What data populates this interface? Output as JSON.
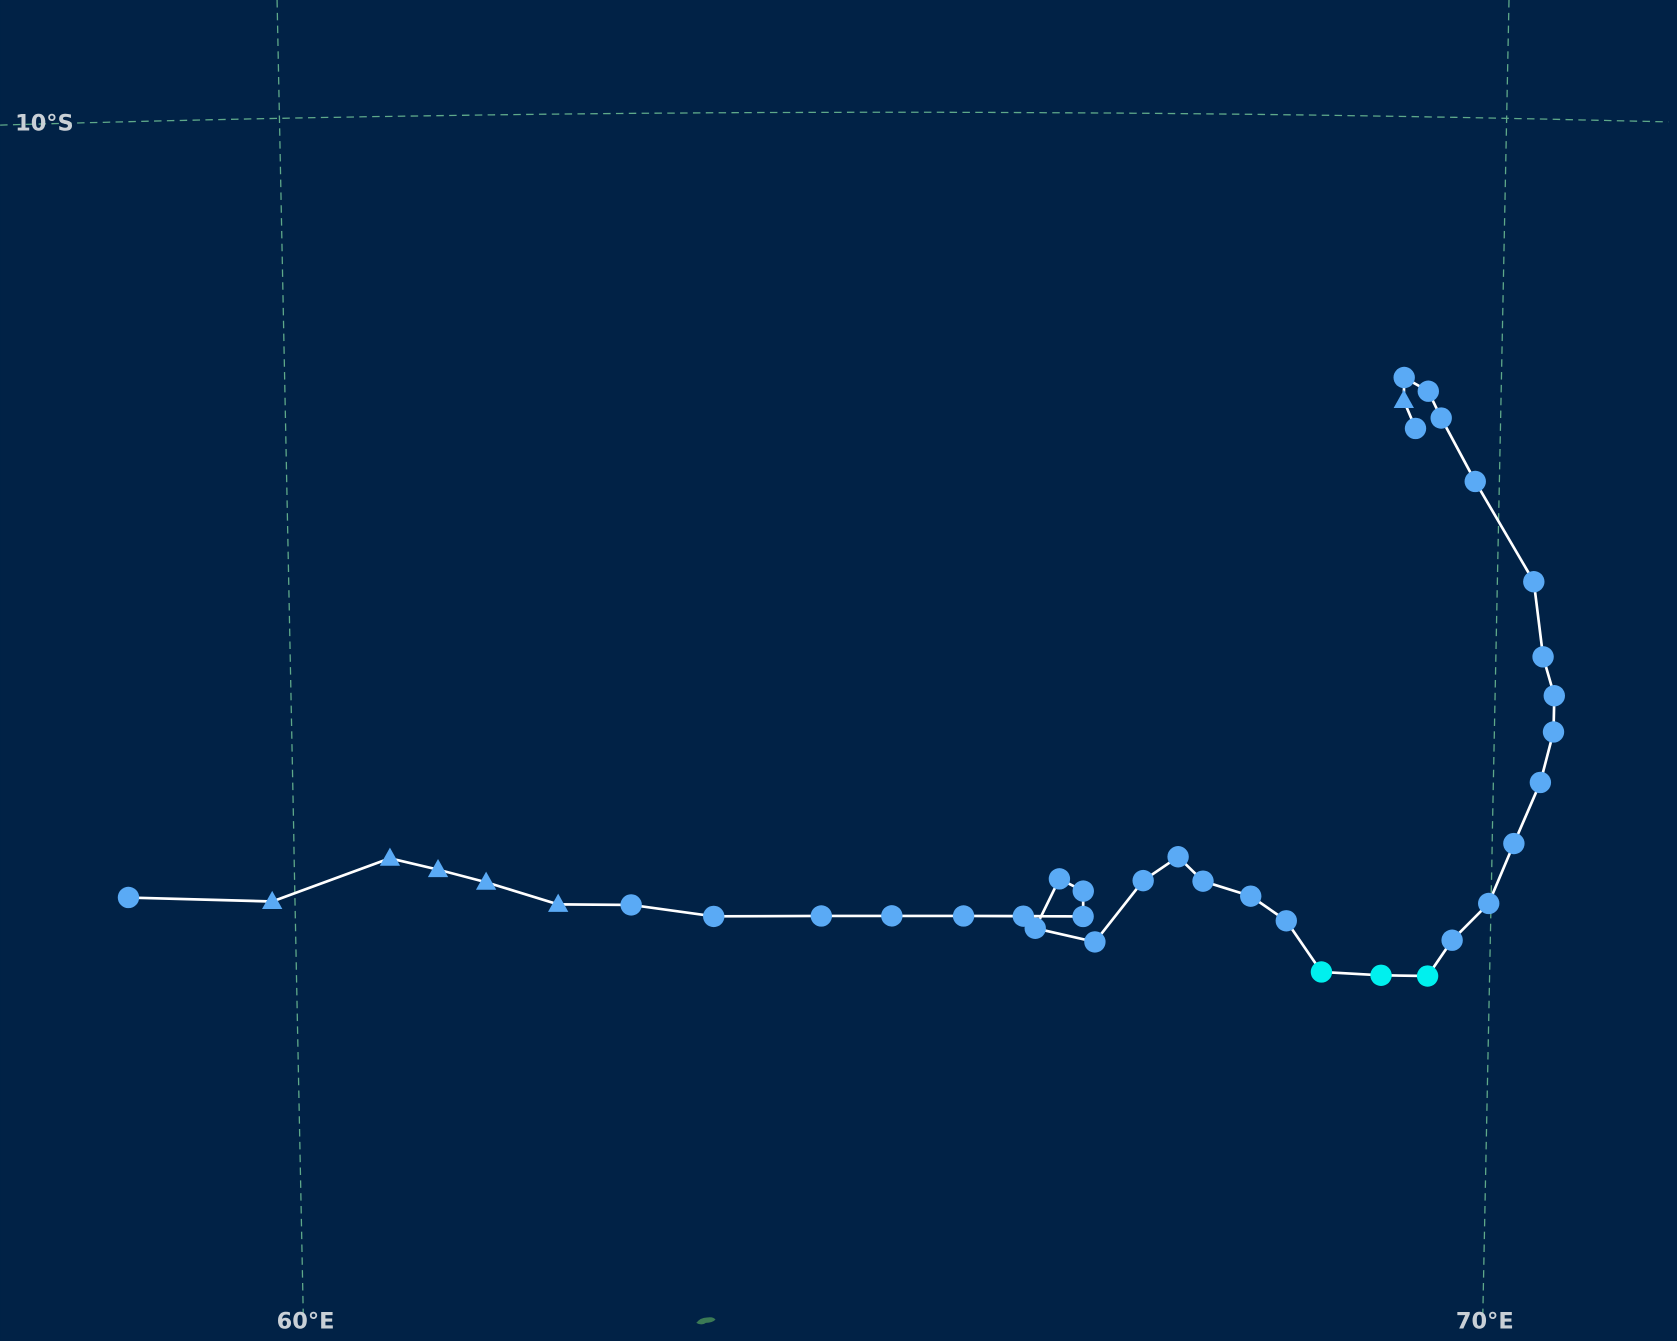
{
  "map": {
    "graticule": {
      "meridians": [
        {
          "lon": 60,
          "label": "60°E"
        },
        {
          "lon": 70,
          "label": "70°E"
        }
      ],
      "parallels": [
        {
          "lat": -10,
          "label": "10°S"
        }
      ]
    },
    "track": {
      "line_color": "#ffffff",
      "lon": [
        58.61,
        59.81,
        60.8,
        61.2,
        61.6,
        62.2,
        62.81,
        63.5,
        64.4,
        64.99,
        65.59,
        66.09,
        66.59,
        66.59,
        66.39,
        66.19,
        66.69,
        67.09,
        67.38,
        67.59,
        67.99,
        68.29,
        68.59,
        69.09,
        69.48,
        69.68,
        69.98,
        70.18,
        70.39,
        70.49,
        70.49,
        70.39,
        70.3,
        69.8,
        69.51,
        69.4,
        69.2,
        69.2,
        69.3
      ],
      "lat": [
        -16.42,
        -16.48,
        -16.14,
        -16.24,
        -16.35,
        -16.54,
        -16.55,
        -16.65,
        -16.65,
        -16.65,
        -16.65,
        -16.65,
        -16.65,
        -16.44,
        -16.34,
        -16.75,
        -16.86,
        -16.35,
        -16.15,
        -16.35,
        -16.47,
        -16.67,
        -17.09,
        -17.11,
        -17.11,
        -16.81,
        -16.5,
        -16.0,
        -15.49,
        -15.07,
        -14.77,
        -14.45,
        -13.83,
        -13.01,
        -12.49,
        -12.27,
        -12.16,
        -12.35,
        -12.58
      ],
      "marker": [
        "circle",
        "triangle",
        "triangle",
        "triangle",
        "triangle",
        "triangle",
        "circle",
        "circle",
        "circle",
        "circle",
        "circle",
        "circle",
        "circle",
        "circle",
        "circle",
        "circle",
        "circle",
        "circle",
        "circle",
        "circle",
        "circle",
        "circle",
        "circle",
        "circle",
        "circle",
        "circle",
        "circle",
        "circle",
        "circle",
        "circle",
        "circle",
        "circle",
        "circle",
        "circle",
        "circle",
        "circle",
        "circle",
        "triangle",
        "circle"
      ],
      "color": [
        "#5aaaf5",
        "#5aaaf5",
        "#5aaaf5",
        "#5aaaf5",
        "#5aaaf5",
        "#5aaaf5",
        "#5aaaf5",
        "#5aaaf5",
        "#5aaaf5",
        "#5aaaf5",
        "#5aaaf5",
        "#5aaaf5",
        "#5aaaf5",
        "#5aaaf5",
        "#5aaaf5",
        "#5aaaf5",
        "#5aaaf5",
        "#5aaaf5",
        "#5aaaf5",
        "#5aaaf5",
        "#5aaaf5",
        "#5aaaf5",
        "#00f0ee",
        "#00f0ee",
        "#00f0ee",
        "#5aaaf5",
        "#5aaaf5",
        "#5aaaf5",
        "#5aaaf5",
        "#5aaaf5",
        "#5aaaf5",
        "#5aaaf5",
        "#5aaaf5",
        "#5aaaf5",
        "#5aaaf5",
        "#5aaaf5",
        "#5aaaf5",
        "#5aaaf5",
        "#5aaaf5"
      ]
    }
  }
}
